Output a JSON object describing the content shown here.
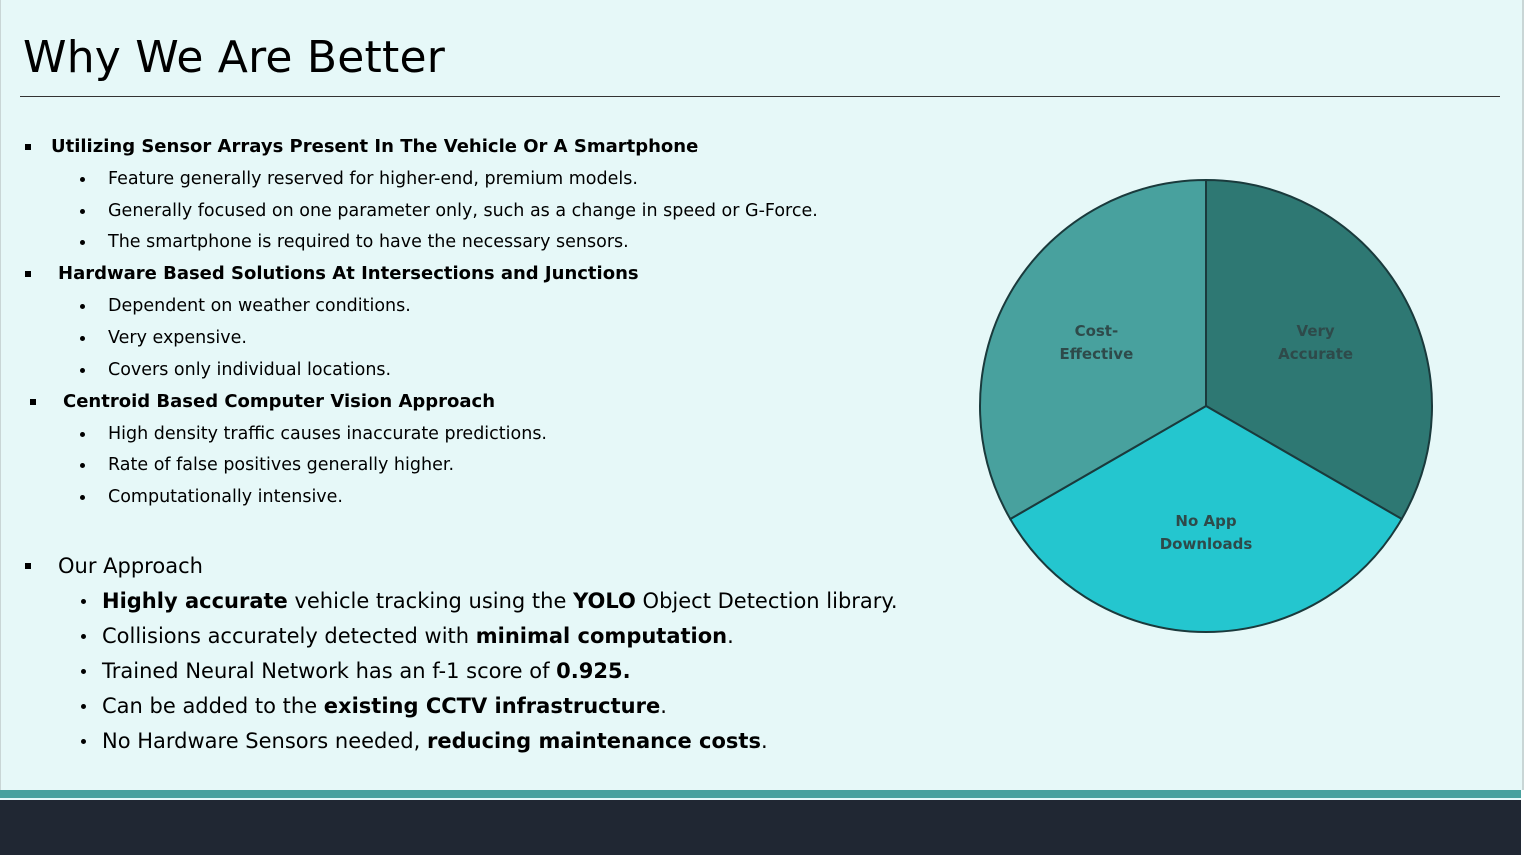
{
  "slide": {
    "title": "Why We Are Better"
  },
  "sections": [
    {
      "heading": "Utilizing Sensor Arrays Present In The Vehicle Or A Smartphone",
      "bullets": [
        "Feature generally reserved for higher-end, premium models.",
        "Generally focused on one parameter only, such as a change in speed or G-Force.",
        "The smartphone is required to have the necessary sensors."
      ]
    },
    {
      "heading": "Hardware Based Solutions At Intersections and Junctions",
      "bullets": [
        "Dependent on weather conditions.",
        "Very expensive.",
        "Covers only individual locations."
      ]
    },
    {
      "heading": "Centroid Based Computer Vision Approach",
      "bullets": [
        "High density traffic causes inaccurate predictions.",
        "Rate of false positives generally higher.",
        "Computationally intensive."
      ]
    }
  ],
  "approach": {
    "heading": "Our Approach",
    "bullets": [
      {
        "parts": [
          {
            "b": "Highly accurate"
          },
          {
            "t": " vehicle tracking using the "
          },
          {
            "b": "YOLO"
          },
          {
            "t": " Object Detection library."
          }
        ]
      },
      {
        "parts": [
          {
            "t": "Collisions accurately detected with "
          },
          {
            "b": "minimal computation"
          },
          {
            "t": "."
          }
        ]
      },
      {
        "parts": [
          {
            "t": "Trained Neural Network has an f-1 score of "
          },
          {
            "b": "0.925."
          }
        ]
      },
      {
        "parts": [
          {
            "t": "Can be added to the "
          },
          {
            "b": "existing CCTV infrastructure"
          },
          {
            "t": "."
          }
        ]
      },
      {
        "parts": [
          {
            "t": "No Hardware Sensors needed, "
          },
          {
            "b": "reducing maintenance costs"
          },
          {
            "t": "."
          }
        ]
      }
    ]
  },
  "chart_data": {
    "type": "pie",
    "slices": [
      {
        "label_lines": [
          "Very",
          "Accurate"
        ],
        "value": 33.33,
        "color": "#2e7873"
      },
      {
        "label_lines": [
          "No App",
          "Downloads"
        ],
        "value": 33.33,
        "color": "#24c6cf"
      },
      {
        "label_lines": [
          "Cost-",
          "Effective"
        ],
        "value": 33.33,
        "color": "#48a19e"
      }
    ],
    "start_angle_deg": 0,
    "direction": "clockwise",
    "border_color": "#1a3a3c"
  }
}
